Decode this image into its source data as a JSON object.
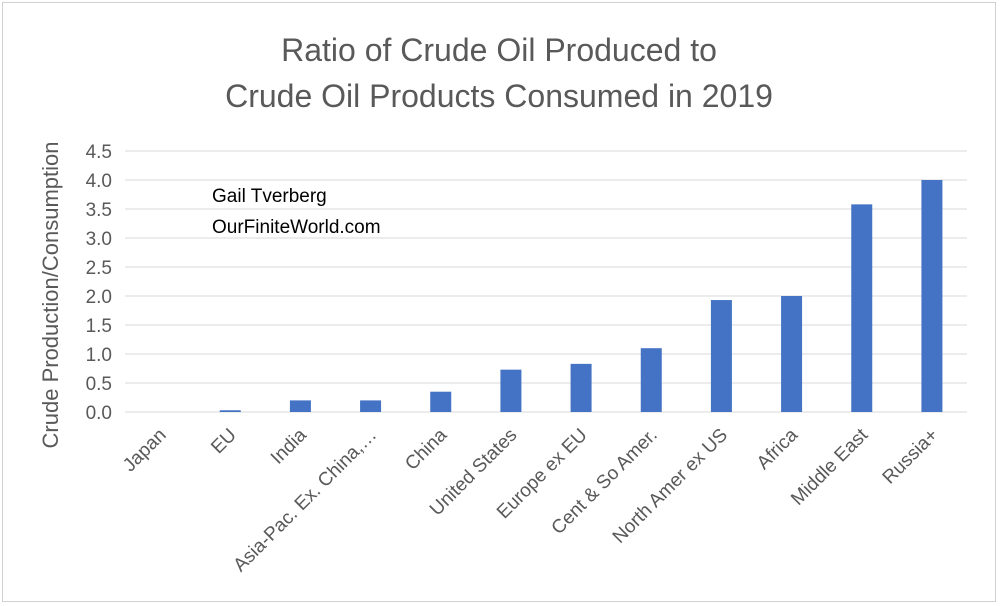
{
  "chart_data": {
    "type": "bar",
    "title_lines": [
      "Ratio of Crude Oil Produced to",
      "Crude Oil Products Consumed in 2019"
    ],
    "xlabel": "",
    "ylabel": "Crude Production/Consumption",
    "ylim": [
      0,
      4.5
    ],
    "yticks": [
      "0.0",
      "0.5",
      "1.0",
      "1.5",
      "2.0",
      "2.5",
      "3.0",
      "3.5",
      "4.0",
      "4.5"
    ],
    "grid": true,
    "legend": "none",
    "bar_color": "#4472c4",
    "annotations": [
      "Gail Tverberg",
      "OurFiniteWorld.com"
    ],
    "categories": [
      "Japan",
      "EU",
      "India",
      "Asia-Pac. Ex. China,…",
      "China",
      "United States",
      "Europe ex EU",
      "Cent & So Amer.",
      "North Amer ex US",
      "Africa",
      "Middle East",
      "Russia+"
    ],
    "values": [
      0.0,
      0.03,
      0.2,
      0.2,
      0.35,
      0.73,
      0.83,
      1.1,
      1.93,
      2.0,
      3.58,
      4.0
    ]
  }
}
